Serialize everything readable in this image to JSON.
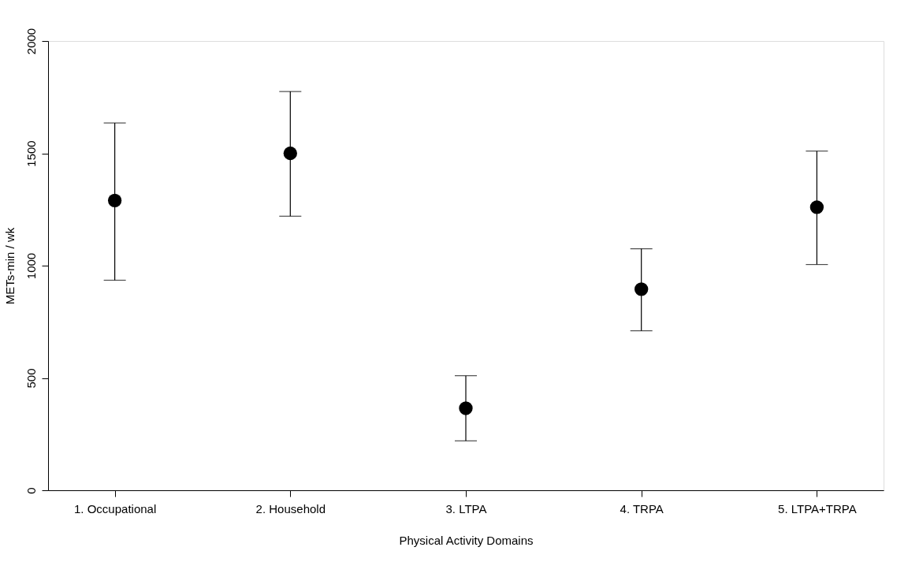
{
  "chart_data": {
    "type": "scatter",
    "xlabel": "Physical Activity Domains",
    "ylabel": "METs-min / wk",
    "categories": [
      "1. Occupational",
      "2. Household",
      "3. LTPA",
      "4. TRPA",
      "5. LTPA+TRPA"
    ],
    "series": [
      {
        "color": "#000000",
        "values": [
          1290,
          1500,
          365,
          895,
          1260
        ],
        "errors": [
          [
            935,
            1635
          ],
          [
            1220,
            1775
          ],
          [
            220,
            510
          ],
          [
            710,
            1075
          ],
          [
            1005,
            1510
          ]
        ]
      }
    ],
    "ylim": [
      0,
      2000
    ],
    "yticks": [
      0,
      500,
      1000,
      1500,
      2000
    ],
    "marker": "circle",
    "grid": false
  }
}
